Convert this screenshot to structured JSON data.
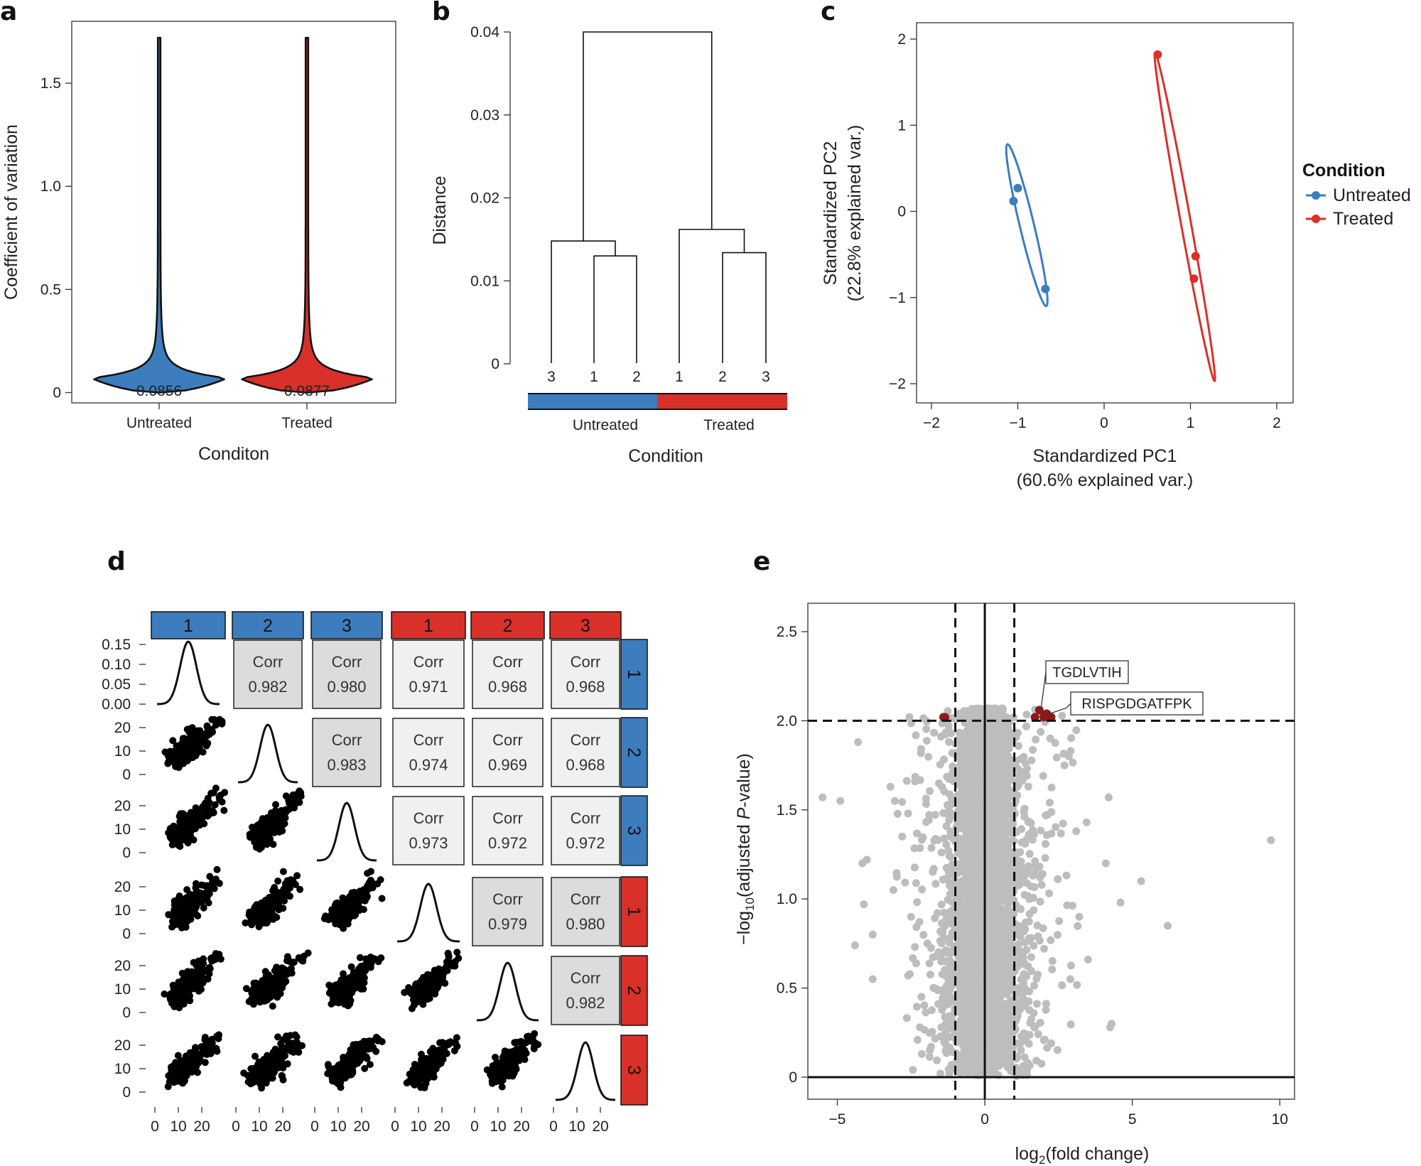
{
  "colors": {
    "untreated": "#3d7dbd",
    "treated": "#d9302a",
    "grey_point": "#bdbdbd",
    "sig_point": "#8b1a1a",
    "corr_dark": "#dcdcdc",
    "corr_light": "#f0f0f0"
  },
  "panel_a": {
    "label": "a",
    "chart_data": {
      "type": "violin",
      "ylabel": "Coefficient of variation",
      "xlabel": "Conditon",
      "categories": [
        "Untreated",
        "Treated"
      ],
      "medians": [
        "0.0856",
        "0.0877"
      ],
      "median_values": [
        0.0856,
        0.0877
      ],
      "max_values": [
        1.72,
        1.72
      ],
      "ylim": [
        -0.05,
        1.8
      ],
      "yticks": [
        0,
        0.5,
        1.0,
        1.5
      ],
      "ytick_labels": [
        "0",
        "0.5",
        "1.0",
        "1.5"
      ]
    }
  },
  "panel_b": {
    "label": "b",
    "chart_data": {
      "type": "dendrogram",
      "ylabel": "Distance",
      "xlabel": "Condition",
      "leaves": [
        "3",
        "1",
        "2",
        "1",
        "2",
        "3"
      ],
      "groups": [
        "Untreated",
        "Treated"
      ],
      "merges": [
        {
          "left": 1,
          "right": 2,
          "height": 0.013
        },
        {
          "left": 0,
          "right": "m0",
          "height": 0.0148
        },
        {
          "left": 4,
          "right": 5,
          "height": 0.0134
        },
        {
          "left": 3,
          "right": "m2",
          "height": 0.0162
        },
        {
          "left": "m1",
          "right": "m3",
          "height": 0.04
        }
      ],
      "ylim": [
        0,
        0.04
      ],
      "yticks": [
        0,
        0.01,
        0.02,
        0.03,
        0.04
      ],
      "ytick_labels": [
        "0",
        "0.01",
        "0.02",
        "0.03",
        "0.04"
      ]
    }
  },
  "panel_c": {
    "label": "c",
    "chart_data": {
      "type": "scatter",
      "xlabel": [
        "Standardized PC1",
        "(60.6% explained var.)"
      ],
      "ylabel": [
        "Standardized PC2",
        "(22.8% explained var.)"
      ],
      "legend_title": "Condition",
      "series": [
        {
          "name": "Untreated",
          "points": [
            [
              -1.0,
              0.27
            ],
            [
              -1.05,
              0.12
            ],
            [
              -0.68,
              -0.9
            ]
          ]
        },
        {
          "name": "Treated",
          "points": [
            [
              0.62,
              1.82
            ],
            [
              1.06,
              -0.52
            ],
            [
              1.04,
              -0.78
            ]
          ]
        }
      ],
      "xlim": [
        -2.2,
        2.2
      ],
      "ylim": [
        -2.15,
        2.15
      ],
      "xticks": [
        -2,
        -1,
        0,
        1,
        2
      ],
      "xtick_labels": [
        "−2",
        "−1",
        "0",
        "1",
        "2"
      ],
      "yticks": [
        -2,
        -1,
        0,
        1,
        2
      ],
      "ytick_labels": [
        "−2",
        "−1",
        "0",
        "1",
        "2"
      ]
    }
  },
  "panel_d": {
    "label": "d",
    "chart_data": {
      "type": "pairs",
      "samples": [
        "1",
        "2",
        "3",
        "1",
        "2",
        "3"
      ],
      "sample_groups": [
        "Untreated",
        "Untreated",
        "Untreated",
        "Treated",
        "Treated",
        "Treated"
      ],
      "corr_label": "Corr",
      "correlations": [
        [
          null,
          "0.982",
          "0.980",
          "0.971",
          "0.968",
          "0.968"
        ],
        [
          null,
          null,
          "0.983",
          "0.974",
          "0.969",
          "0.968"
        ],
        [
          null,
          null,
          null,
          "0.973",
          "0.972",
          "0.972"
        ],
        [
          null,
          null,
          null,
          null,
          "0.979",
          "0.980"
        ],
        [
          null,
          null,
          null,
          null,
          null,
          "0.982"
        ]
      ],
      "density_ytick_labels": [
        "0.15",
        "0.10",
        "0.05",
        "0.00"
      ],
      "scatter_ytick_labels": [
        "20",
        "10",
        "0"
      ],
      "scatter_xtick_labels": [
        "0",
        "10",
        "20"
      ]
    }
  },
  "panel_e": {
    "label": "e",
    "chart_data": {
      "type": "volcano",
      "xlabel": "log2(fold change)",
      "ylabel": "−log10(adjusted P-value)",
      "xlim": [
        -6,
        10.5
      ],
      "ylim": [
        -0.1,
        2.6
      ],
      "xticks": [
        -5,
        0,
        5,
        10
      ],
      "xtick_labels": [
        "−5",
        "0",
        "5",
        "10"
      ],
      "yticks": [
        0,
        0.5,
        1.0,
        1.5,
        2.0,
        2.5
      ],
      "ytick_labels": [
        "0",
        "0.5",
        "1.0",
        "1.5",
        "2.0",
        "2.5"
      ],
      "fc_thresholds": [
        -1,
        1
      ],
      "p_threshold": 2.0,
      "labels": [
        {
          "text": "TGDLVTIH",
          "point": [
            1.9,
            2.06
          ]
        },
        {
          "text": "RISPGDGATFPK",
          "point": [
            2.2,
            2.04
          ]
        }
      ],
      "sig_points": [
        [
          -1.4,
          2.02
        ],
        [
          -1.35,
          2.02
        ],
        [
          1.7,
          2.02
        ],
        [
          1.85,
          2.06
        ],
        [
          2.0,
          2.02
        ],
        [
          2.1,
          2.04
        ],
        [
          2.25,
          2.02
        ]
      ],
      "outlier_points": [
        [
          -5.5,
          1.57
        ],
        [
          -4.9,
          1.55
        ],
        [
          -4.3,
          1.88
        ],
        [
          -3.2,
          1.63
        ],
        [
          -3.05,
          1.55
        ],
        [
          -4.0,
          1.22
        ],
        [
          -4.15,
          1.2
        ],
        [
          -4.1,
          0.97
        ],
        [
          -3.8,
          0.8
        ],
        [
          -4.4,
          0.74
        ],
        [
          -3.8,
          0.55
        ],
        [
          -2.8,
          1.35
        ],
        [
          -2.5,
          0.9
        ],
        [
          -2.6,
          1.48
        ],
        [
          -3.1,
          1.05
        ],
        [
          -2.2,
          0.28
        ],
        [
          -2.6,
          0.57
        ],
        [
          4.2,
          1.57
        ],
        [
          4.1,
          1.2
        ],
        [
          5.3,
          1.1
        ],
        [
          4.6,
          0.98
        ],
        [
          6.2,
          0.85
        ],
        [
          4.3,
          0.3
        ],
        [
          4.25,
          0.28
        ],
        [
          3.45,
          1.43
        ],
        [
          3.1,
          1.38
        ],
        [
          2.9,
          0.55
        ],
        [
          3.5,
          0.66
        ],
        [
          9.7,
          1.33
        ],
        [
          2.7,
          1.75
        ],
        [
          3.2,
          0.9
        ]
      ]
    }
  }
}
